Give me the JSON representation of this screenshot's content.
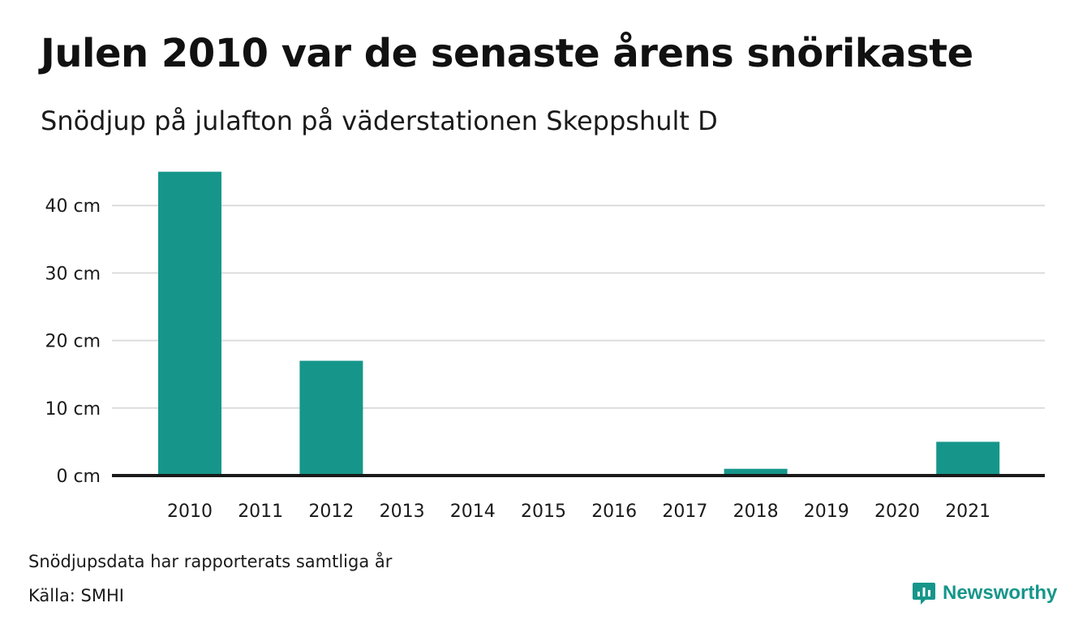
{
  "title": "Julen 2010 var de senaste årens snörikaste",
  "subtitle": "Snödjup på julafton på väderstationen Skeppshult D",
  "footnote": "Snödjupsdata har rapporterats samtliga år",
  "source": "Källa: SMHI",
  "brand": {
    "name": "Newsworthy",
    "icon": "newsworthy-logo-icon",
    "color": "#16968a"
  },
  "chart_data": {
    "type": "bar",
    "categories": [
      "2010",
      "2011",
      "2012",
      "2013",
      "2014",
      "2015",
      "2016",
      "2017",
      "2018",
      "2019",
      "2020",
      "2021"
    ],
    "values": [
      45,
      0,
      17,
      0,
      0,
      0,
      0,
      0,
      1,
      0,
      0,
      5
    ],
    "title": "Julen 2010 var de senaste årens snörikaste",
    "subtitle": "Snödjup på julafton på väderstationen Skeppshult D",
    "yticks": [
      "0 cm",
      "10 cm",
      "20 cm",
      "30 cm",
      "40 cm"
    ],
    "ytick_values": [
      0,
      10,
      20,
      30,
      40
    ],
    "ylim": [
      0,
      45
    ],
    "bar_color": "#16968a",
    "grid": true,
    "legend": "none"
  }
}
